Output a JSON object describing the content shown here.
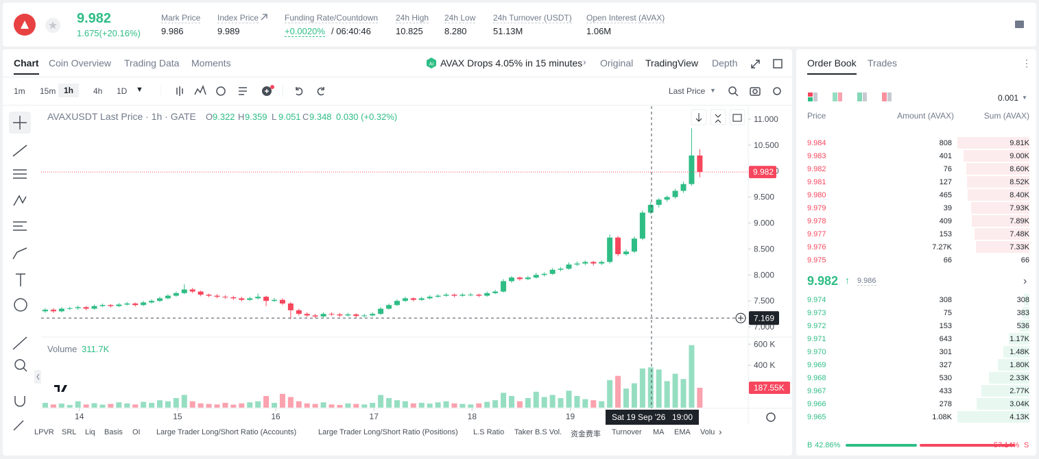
{
  "header": {
    "price": "9.982",
    "change": "1.675(+20.16%)",
    "stats": [
      {
        "label": "Mark Price",
        "value": "9.986"
      },
      {
        "label": "Index Price",
        "value": "9.989"
      },
      {
        "label": "Funding Rate/Countdown",
        "value": "+0.0020%",
        "extra": "/ 06:40:46"
      },
      {
        "label": "24h High",
        "value": "10.825"
      },
      {
        "label": "24h Low",
        "value": "8.280"
      },
      {
        "label": "24h Turnover (USDT)",
        "value": "51.13M"
      },
      {
        "label": "Open Interest (AVAX)",
        "value": "1.06M"
      }
    ]
  },
  "tabs": [
    "Chart",
    "Coin Overview",
    "Trading Data",
    "Moments"
  ],
  "alert": "AVAX Drops 4.05% in 15 minutes",
  "views": [
    "Original",
    "TradingView",
    "Depth"
  ],
  "intervals": [
    "1m",
    "15m",
    "1h",
    "4h",
    "1D"
  ],
  "price_source": "Last Price",
  "indicators": [
    "LPVR",
    "SRL",
    "Liq",
    "Basis",
    "OI",
    "Large Trader Long/Short Ratio (Accounts)",
    "Large Trader Long/Short Ratio (Positions)",
    "L.S Ratio",
    "Taker B.S Vol.",
    "资金费率",
    "Turnover",
    "MA",
    "EMA",
    "Volu"
  ],
  "chart_data": {
    "type": "candlestick",
    "legend": {
      "title": "AVAXUSDT Last Price · 1h · GATE",
      "ohlc": [
        {
          "label": "O",
          "value": 9.322
        },
        {
          "label": "H",
          "value": 9.359
        },
        {
          "label": "L",
          "value": 9.051
        },
        {
          "label": "C",
          "value": 9.348
        }
      ],
      "change": "0.030 (+0.32%)"
    },
    "volume_title": "Volume",
    "volume_value": "311.7K",
    "colors": {
      "up": "#2ebd85",
      "down": "#f6465d"
    },
    "grid": false,
    "xlim": [
      -0.5,
      85.5
    ],
    "xticks": [
      {
        "value": 4.17,
        "label": "14"
      },
      {
        "value": 16.17,
        "label": "15"
      },
      {
        "value": 28.17,
        "label": "16"
      },
      {
        "value": 40.17,
        "label": "17"
      },
      {
        "value": 52.17,
        "label": "18"
      },
      {
        "value": 64.17,
        "label": "19"
      }
    ],
    "ylim": [
      6.83,
      11.25
    ],
    "yticks": [
      {
        "value": 7,
        "label": "7.000"
      },
      {
        "value": 7.5,
        "label": "7.500"
      },
      {
        "value": 8,
        "label": "8.000"
      },
      {
        "value": 8.5,
        "label": "8.500"
      },
      {
        "value": 9,
        "label": "9.000"
      },
      {
        "value": 9.5,
        "label": "9.500"
      },
      {
        "value": 10,
        "label": "10.000"
      },
      {
        "value": 10.5,
        "label": "10.500"
      },
      {
        "value": 11,
        "label": "11.000"
      }
    ],
    "vlim": [
      0,
      660000
    ],
    "vticks": [
      {
        "value": 400000,
        "label": "400 K"
      },
      {
        "value": 600000,
        "label": "600 K"
      }
    ],
    "last_price": 9.982,
    "volume_marker": {
      "value": 187550,
      "label": "187.55K"
    },
    "crosshair": {
      "price": 7.169,
      "date": "Sat 19 Sep '26",
      "time": "19:00"
    },
    "candles": [
      [
        7.3,
        7.36,
        7.27,
        7.33
      ],
      [
        7.33,
        7.36,
        7.27,
        7.3
      ],
      [
        7.3,
        7.38,
        7.28,
        7.35
      ],
      [
        7.35,
        7.39,
        7.32,
        7.36
      ],
      [
        7.36,
        7.41,
        7.33,
        7.38
      ],
      [
        7.38,
        7.4,
        7.32,
        7.35
      ],
      [
        7.35,
        7.43,
        7.33,
        7.4
      ],
      [
        7.4,
        7.45,
        7.38,
        7.42
      ],
      [
        7.42,
        7.44,
        7.37,
        7.4
      ],
      [
        7.4,
        7.46,
        7.38,
        7.43
      ],
      [
        7.43,
        7.48,
        7.41,
        7.45
      ],
      [
        7.45,
        7.47,
        7.39,
        7.42
      ],
      [
        7.42,
        7.5,
        7.4,
        7.47
      ],
      [
        7.47,
        7.53,
        7.45,
        7.5
      ],
      [
        7.5,
        7.58,
        7.48,
        7.55
      ],
      [
        7.55,
        7.63,
        7.53,
        7.6
      ],
      [
        7.6,
        7.68,
        7.58,
        7.65
      ],
      [
        7.65,
        7.82,
        7.63,
        7.72
      ],
      [
        7.72,
        7.75,
        7.65,
        7.68
      ],
      [
        7.68,
        7.7,
        7.59,
        7.62
      ],
      [
        7.62,
        7.64,
        7.57,
        7.6
      ],
      [
        7.6,
        7.63,
        7.55,
        7.58
      ],
      [
        7.58,
        7.61,
        7.54,
        7.57
      ],
      [
        7.57,
        7.6,
        7.52,
        7.55
      ],
      [
        7.55,
        7.58,
        7.49,
        7.52
      ],
      [
        7.52,
        7.58,
        7.5,
        7.55
      ],
      [
        7.55,
        7.64,
        7.53,
        7.58
      ],
      [
        7.58,
        7.6,
        7.4,
        7.5
      ],
      [
        7.5,
        7.56,
        7.48,
        7.52
      ],
      [
        7.52,
        7.55,
        7.42,
        7.45
      ],
      [
        7.45,
        7.48,
        7.15,
        7.32
      ],
      [
        7.32,
        7.35,
        7.22,
        7.25
      ],
      [
        7.25,
        7.28,
        7.19,
        7.22
      ],
      [
        7.22,
        7.25,
        7.17,
        7.2
      ],
      [
        7.2,
        7.28,
        7.18,
        7.25
      ],
      [
        7.25,
        7.28,
        7.21,
        7.24
      ],
      [
        7.24,
        7.27,
        7.19,
        7.22
      ],
      [
        7.22,
        7.27,
        7.2,
        7.24
      ],
      [
        7.24,
        7.26,
        7.18,
        7.21
      ],
      [
        7.21,
        7.25,
        7.18,
        7.22
      ],
      [
        7.22,
        7.28,
        7.2,
        7.25
      ],
      [
        7.25,
        7.38,
        7.23,
        7.35
      ],
      [
        7.35,
        7.45,
        7.33,
        7.42
      ],
      [
        7.42,
        7.53,
        7.4,
        7.5
      ],
      [
        7.5,
        7.58,
        7.48,
        7.55
      ],
      [
        7.55,
        7.57,
        7.49,
        7.52
      ],
      [
        7.52,
        7.58,
        7.5,
        7.55
      ],
      [
        7.55,
        7.61,
        7.53,
        7.58
      ],
      [
        7.58,
        7.63,
        7.56,
        7.6
      ],
      [
        7.6,
        7.65,
        7.58,
        7.62
      ],
      [
        7.62,
        7.64,
        7.57,
        7.6
      ],
      [
        7.6,
        7.65,
        7.58,
        7.62
      ],
      [
        7.62,
        7.65,
        7.59,
        7.62
      ],
      [
        7.62,
        7.64,
        7.57,
        7.6
      ],
      [
        7.6,
        7.68,
        7.58,
        7.65
      ],
      [
        7.65,
        7.71,
        7.63,
        7.68
      ],
      [
        7.68,
        7.92,
        7.66,
        7.88
      ],
      [
        7.88,
        7.98,
        7.85,
        7.95
      ],
      [
        7.95,
        7.97,
        7.89,
        7.92
      ],
      [
        7.92,
        7.98,
        7.9,
        7.95
      ],
      [
        7.95,
        8.04,
        7.93,
        8.0
      ],
      [
        8.0,
        8.05,
        7.97,
        8.02
      ],
      [
        8.02,
        8.13,
        8.0,
        8.1
      ],
      [
        8.1,
        8.15,
        8.07,
        8.12
      ],
      [
        8.12,
        8.24,
        8.1,
        8.2
      ],
      [
        8.2,
        8.26,
        8.17,
        8.22
      ],
      [
        8.22,
        8.28,
        8.19,
        8.25
      ],
      [
        8.25,
        8.27,
        8.18,
        8.22
      ],
      [
        8.22,
        8.28,
        8.19,
        8.25
      ],
      [
        8.25,
        8.78,
        8.22,
        8.72
      ],
      [
        8.72,
        8.75,
        8.36,
        8.4
      ],
      [
        8.4,
        8.49,
        8.37,
        8.45
      ],
      [
        8.45,
        8.74,
        8.42,
        8.7
      ],
      [
        8.7,
        9.24,
        8.67,
        9.2
      ],
      [
        9.2,
        9.4,
        9.17,
        9.35
      ],
      [
        9.35,
        9.48,
        9.3,
        9.45
      ],
      [
        9.45,
        9.53,
        9.41,
        9.5
      ],
      [
        9.5,
        9.66,
        9.47,
        9.62
      ],
      [
        9.62,
        9.8,
        9.58,
        9.75
      ],
      [
        9.75,
        10.825,
        9.72,
        10.3
      ],
      [
        10.3,
        10.42,
        9.88,
        9.982
      ]
    ],
    "volumes": [
      45000,
      30000,
      38000,
      25000,
      60000,
      30000,
      42000,
      28000,
      35000,
      50000,
      40000,
      30000,
      55000,
      45000,
      70000,
      60000,
      90000,
      120000,
      60000,
      40000,
      35000,
      30000,
      45000,
      28000,
      40000,
      50000,
      60000,
      110000,
      45000,
      130000,
      100000,
      60000,
      40000,
      35000,
      50000,
      30000,
      25000,
      40000,
      35000,
      30000,
      45000,
      120000,
      90000,
      70000,
      60000,
      40000,
      45000,
      38000,
      50000,
      60000,
      40000,
      35000,
      30000,
      40000,
      55000,
      70000,
      140000,
      110000,
      60000,
      90000,
      150000,
      100000,
      120000,
      90000,
      160000,
      110000,
      80000,
      70000,
      60000,
      260000,
      300000,
      180000,
      230000,
      370000,
      380000,
      360000,
      250000,
      320000,
      270000,
      590000,
      187550
    ]
  },
  "order_book": {
    "tabs": [
      "Order Book",
      "Trades"
    ],
    "precision": "0.001",
    "headers": [
      "Price",
      "Amount (AVAX)",
      "Sum (AVAX)"
    ],
    "asks": [
      [
        "9.984",
        "808",
        "9.81K"
      ],
      [
        "9.983",
        "401",
        "9.00K"
      ],
      [
        "9.982",
        "76",
        "8.60K"
      ],
      [
        "9.981",
        "127",
        "8.52K"
      ],
      [
        "9.980",
        "465",
        "8.40K"
      ],
      [
        "9.979",
        "39",
        "7.93K"
      ],
      [
        "9.978",
        "409",
        "7.89K"
      ],
      [
        "9.977",
        "153",
        "7.48K"
      ],
      [
        "9.976",
        "7.27K",
        "7.33K"
      ],
      [
        "9.975",
        "66",
        "66"
      ]
    ],
    "mid_price": "9.982",
    "mark_price": "9.986",
    "bids": [
      [
        "9.974",
        "308",
        "308"
      ],
      [
        "9.973",
        "75",
        "383"
      ],
      [
        "9.972",
        "153",
        "536"
      ],
      [
        "9.971",
        "643",
        "1.17K"
      ],
      [
        "9.970",
        "301",
        "1.48K"
      ],
      [
        "9.969",
        "327",
        "1.80K"
      ],
      [
        "9.968",
        "530",
        "2.33K"
      ],
      [
        "9.967",
        "433",
        "2.77K"
      ],
      [
        "9.966",
        "278",
        "3.04K"
      ],
      [
        "9.965",
        "1.08K",
        "4.13K"
      ]
    ],
    "buy_letter": "B",
    "buy_ratio": {
      "value": 42.86,
      "label": "42.86%"
    },
    "sell_ratio": {
      "value": 57.14,
      "label": "57.14%"
    },
    "sell_letter": "S"
  }
}
